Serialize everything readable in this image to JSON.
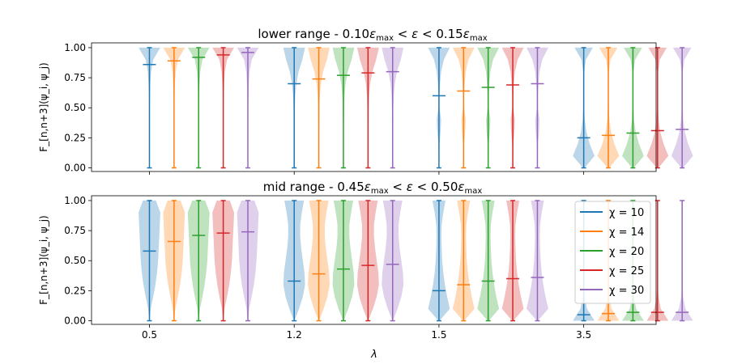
{
  "chart_data": {
    "type": "violin",
    "xlabel": "λ",
    "x_categories": [
      "0.5",
      "1.2",
      "1.5",
      "3.5"
    ],
    "series_names": [
      "χ = 10",
      "χ = 14",
      "χ = 20",
      "χ = 25",
      "χ = 30"
    ],
    "series_colors": [
      "#1f77b4",
      "#ff7f0e",
      "#2ca02c",
      "#d62728",
      "#9467bd"
    ],
    "yticks": [
      "0.00",
      "0.25",
      "0.50",
      "0.75",
      "1.00"
    ],
    "ylim": [
      -0.03,
      1.04
    ],
    "legend_location": "right (lower panel)",
    "panels": [
      {
        "title": "lower range - 0.10ε_max < ε < 0.15ε_max",
        "ylabel": "F_[n,n+3](ψ_i, ψ_j)",
        "groups": [
          {
            "lambda": "0.5",
            "min": [
              0.0,
              0.0,
              0.0,
              0.0,
              0.0
            ],
            "max": [
              1.0,
              1.0,
              1.0,
              1.0,
              1.0
            ],
            "median": [
              0.86,
              0.89,
              0.92,
              0.94,
              0.96
            ]
          },
          {
            "lambda": "1.2",
            "min": [
              0.0,
              0.0,
              0.0,
              0.0,
              0.0
            ],
            "max": [
              1.0,
              1.0,
              1.0,
              1.0,
              1.0
            ],
            "median": [
              0.7,
              0.74,
              0.77,
              0.79,
              0.8
            ]
          },
          {
            "lambda": "1.5",
            "min": [
              0.0,
              0.0,
              0.0,
              0.0,
              0.0
            ],
            "max": [
              1.0,
              1.0,
              1.0,
              1.0,
              1.0
            ],
            "median": [
              0.6,
              0.64,
              0.67,
              0.69,
              0.7
            ]
          },
          {
            "lambda": "3.5",
            "min": [
              0.0,
              0.0,
              0.0,
              0.0,
              0.0
            ],
            "max": [
              1.0,
              1.0,
              1.0,
              1.0,
              1.0
            ],
            "median": [
              0.25,
              0.27,
              0.29,
              0.31,
              0.32
            ]
          }
        ]
      },
      {
        "title": "mid range - 0.45ε_max < ε < 0.50ε_max",
        "ylabel": "F_[n,n+3](ψ_i, ψ_j)",
        "groups": [
          {
            "lambda": "0.5",
            "min": [
              0.0,
              0.0,
              0.0,
              0.0,
              0.0
            ],
            "max": [
              1.0,
              1.0,
              1.0,
              1.0,
              1.0
            ],
            "median": [
              0.58,
              0.66,
              0.71,
              0.73,
              0.74
            ]
          },
          {
            "lambda": "1.2",
            "min": [
              0.0,
              0.0,
              0.0,
              0.0,
              0.0
            ],
            "max": [
              1.0,
              1.0,
              1.0,
              1.0,
              1.0
            ],
            "median": [
              0.33,
              0.39,
              0.43,
              0.46,
              0.47
            ]
          },
          {
            "lambda": "1.5",
            "min": [
              0.0,
              0.0,
              0.0,
              0.0,
              0.0
            ],
            "max": [
              1.0,
              1.0,
              1.0,
              1.0,
              1.0
            ],
            "median": [
              0.25,
              0.3,
              0.33,
              0.35,
              0.36
            ]
          },
          {
            "lambda": "3.5",
            "min": [
              0.0,
              0.0,
              0.0,
              0.0,
              0.0
            ],
            "max": [
              1.0,
              1.0,
              1.0,
              1.0,
              1.0
            ],
            "median": [
              0.05,
              0.06,
              0.07,
              0.07,
              0.07
            ]
          }
        ]
      }
    ]
  }
}
